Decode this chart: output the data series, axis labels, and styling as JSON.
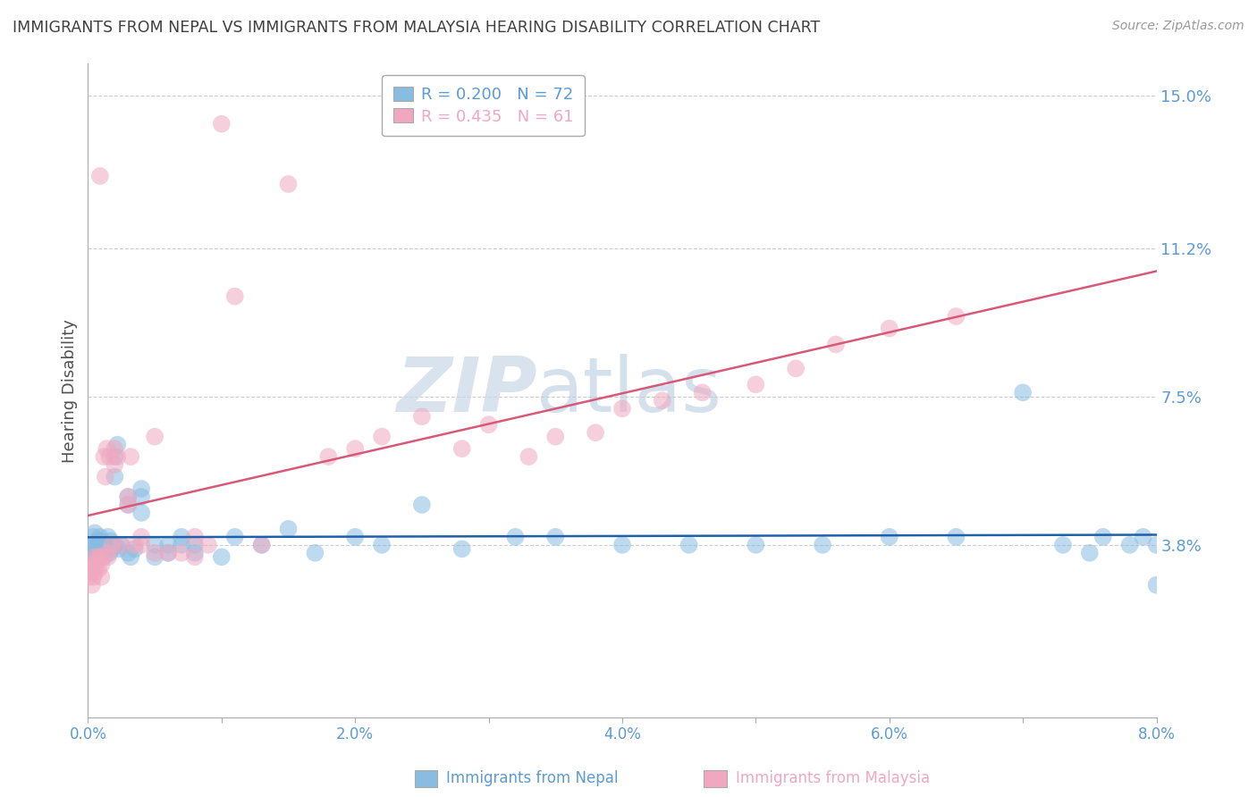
{
  "title": "IMMIGRANTS FROM NEPAL VS IMMIGRANTS FROM MALAYSIA HEARING DISABILITY CORRELATION CHART",
  "source": "Source: ZipAtlas.com",
  "ylabel": "Hearing Disability",
  "xlim": [
    0.0,
    0.08
  ],
  "ylim": [
    -0.005,
    0.158
  ],
  "yticks": [
    0.038,
    0.075,
    0.112,
    0.15
  ],
  "ytick_labels": [
    "3.8%",
    "7.5%",
    "11.2%",
    "15.0%"
  ],
  "xticks": [
    0.0,
    0.01,
    0.02,
    0.03,
    0.04,
    0.05,
    0.06,
    0.07,
    0.08
  ],
  "xtick_labels": [
    "0.0%",
    "",
    "2.0%",
    "",
    "4.0%",
    "",
    "6.0%",
    "",
    "8.0%"
  ],
  "nepal_R": 0.2,
  "nepal_N": 72,
  "malaysia_R": 0.435,
  "malaysia_N": 61,
  "nepal_color": "#88bce0",
  "malaysia_color": "#f0a8c0",
  "nepal_line_color": "#2060a8",
  "malaysia_line_color": "#d85878",
  "watermark_color": "#d8e4f0",
  "background_color": "#ffffff",
  "grid_color": "#cccccc",
  "title_color": "#404040",
  "axis_label_color": "#505050",
  "tick_label_color": "#5b9bd5",
  "nepal_x": [
    0.0002,
    0.0003,
    0.0004,
    0.0004,
    0.0005,
    0.0005,
    0.0006,
    0.0006,
    0.0007,
    0.0007,
    0.0008,
    0.0008,
    0.0009,
    0.0009,
    0.001,
    0.001,
    0.001,
    0.0012,
    0.0012,
    0.0013,
    0.0015,
    0.0015,
    0.0016,
    0.0017,
    0.0018,
    0.002,
    0.002,
    0.002,
    0.0022,
    0.0023,
    0.0025,
    0.003,
    0.003,
    0.003,
    0.0032,
    0.0035,
    0.004,
    0.004,
    0.004,
    0.005,
    0.005,
    0.006,
    0.006,
    0.007,
    0.007,
    0.008,
    0.008,
    0.01,
    0.011,
    0.013,
    0.015,
    0.017,
    0.02,
    0.022,
    0.025,
    0.028,
    0.032,
    0.035,
    0.04,
    0.045,
    0.05,
    0.055,
    0.06,
    0.065,
    0.07,
    0.073,
    0.075,
    0.076,
    0.078,
    0.079,
    0.08,
    0.08
  ],
  "nepal_y": [
    0.038,
    0.036,
    0.04,
    0.035,
    0.041,
    0.037,
    0.036,
    0.038,
    0.039,
    0.037,
    0.038,
    0.035,
    0.04,
    0.036,
    0.038,
    0.036,
    0.039,
    0.035,
    0.037,
    0.038,
    0.04,
    0.038,
    0.036,
    0.039,
    0.037,
    0.038,
    0.06,
    0.055,
    0.063,
    0.037,
    0.038,
    0.036,
    0.05,
    0.048,
    0.035,
    0.037,
    0.052,
    0.05,
    0.046,
    0.038,
    0.035,
    0.038,
    0.036,
    0.038,
    0.04,
    0.038,
    0.036,
    0.035,
    0.04,
    0.038,
    0.042,
    0.036,
    0.04,
    0.038,
    0.048,
    0.037,
    0.04,
    0.04,
    0.038,
    0.038,
    0.038,
    0.038,
    0.04,
    0.04,
    0.076,
    0.038,
    0.036,
    0.04,
    0.038,
    0.04,
    0.028,
    0.038
  ],
  "malaysia_x": [
    0.0001,
    0.0002,
    0.0003,
    0.0003,
    0.0004,
    0.0004,
    0.0005,
    0.0005,
    0.0006,
    0.0007,
    0.0008,
    0.0008,
    0.0009,
    0.001,
    0.001,
    0.001,
    0.0012,
    0.0013,
    0.0014,
    0.0015,
    0.0015,
    0.0016,
    0.0018,
    0.002,
    0.002,
    0.0022,
    0.0025,
    0.003,
    0.003,
    0.0032,
    0.0035,
    0.004,
    0.004,
    0.005,
    0.005,
    0.006,
    0.007,
    0.008,
    0.008,
    0.009,
    0.01,
    0.011,
    0.013,
    0.015,
    0.018,
    0.02,
    0.022,
    0.025,
    0.028,
    0.03,
    0.033,
    0.035,
    0.038,
    0.04,
    0.043,
    0.046,
    0.05,
    0.053,
    0.056,
    0.06,
    0.065
  ],
  "malaysia_y": [
    0.03,
    0.032,
    0.028,
    0.031,
    0.033,
    0.03,
    0.035,
    0.031,
    0.033,
    0.034,
    0.035,
    0.032,
    0.13,
    0.033,
    0.035,
    0.03,
    0.06,
    0.055,
    0.062,
    0.036,
    0.035,
    0.06,
    0.038,
    0.062,
    0.058,
    0.06,
    0.038,
    0.05,
    0.048,
    0.06,
    0.038,
    0.04,
    0.038,
    0.065,
    0.036,
    0.036,
    0.036,
    0.04,
    0.035,
    0.038,
    0.143,
    0.1,
    0.038,
    0.128,
    0.06,
    0.062,
    0.065,
    0.07,
    0.062,
    0.068,
    0.06,
    0.065,
    0.066,
    0.072,
    0.074,
    0.076,
    0.078,
    0.082,
    0.088,
    0.092,
    0.095
  ]
}
